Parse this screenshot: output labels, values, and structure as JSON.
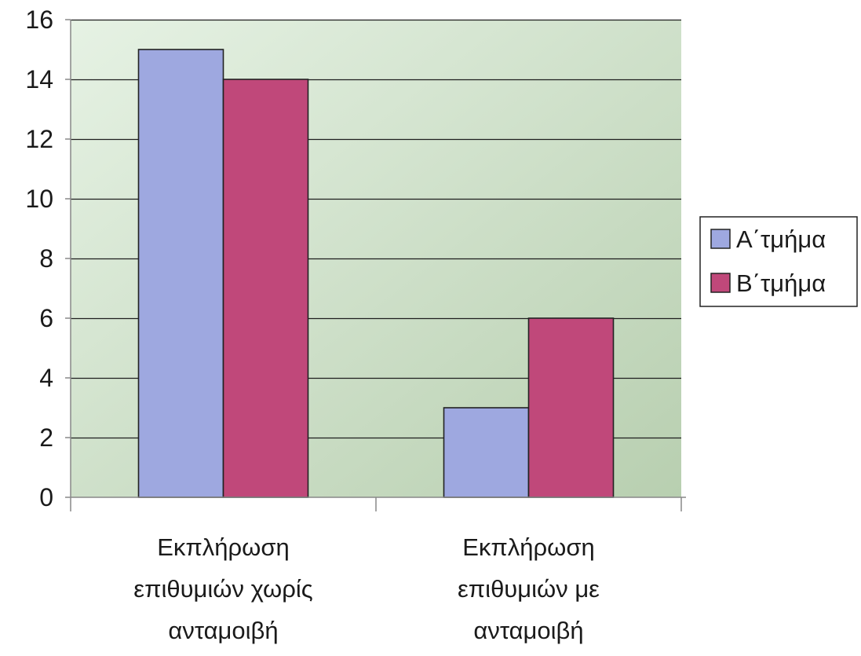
{
  "chart_data": {
    "type": "bar",
    "categories": [
      [
        "Εκπλήρωση",
        "επιθυμιών χωρίς",
        "ανταμοιβή"
      ],
      [
        "Εκπλήρωση",
        "επιθυμιών με",
        "ανταμοιβή"
      ]
    ],
    "series": [
      {
        "name": "A΄τμήμα",
        "values": [
          15,
          3
        ],
        "color": "#9ea8e0"
      },
      {
        "name": "B΄τμήμα",
        "values": [
          14,
          6
        ],
        "color": "#c0487a"
      }
    ],
    "ylim": [
      0,
      16
    ],
    "yticks": [
      0,
      2,
      4,
      6,
      8,
      10,
      12,
      14,
      16
    ],
    "grid": true,
    "legend_position": "right",
    "plot_background": [
      "#e6f2e4",
      "#b8cfb0"
    ],
    "title": "",
    "xlabel": "",
    "ylabel": ""
  }
}
